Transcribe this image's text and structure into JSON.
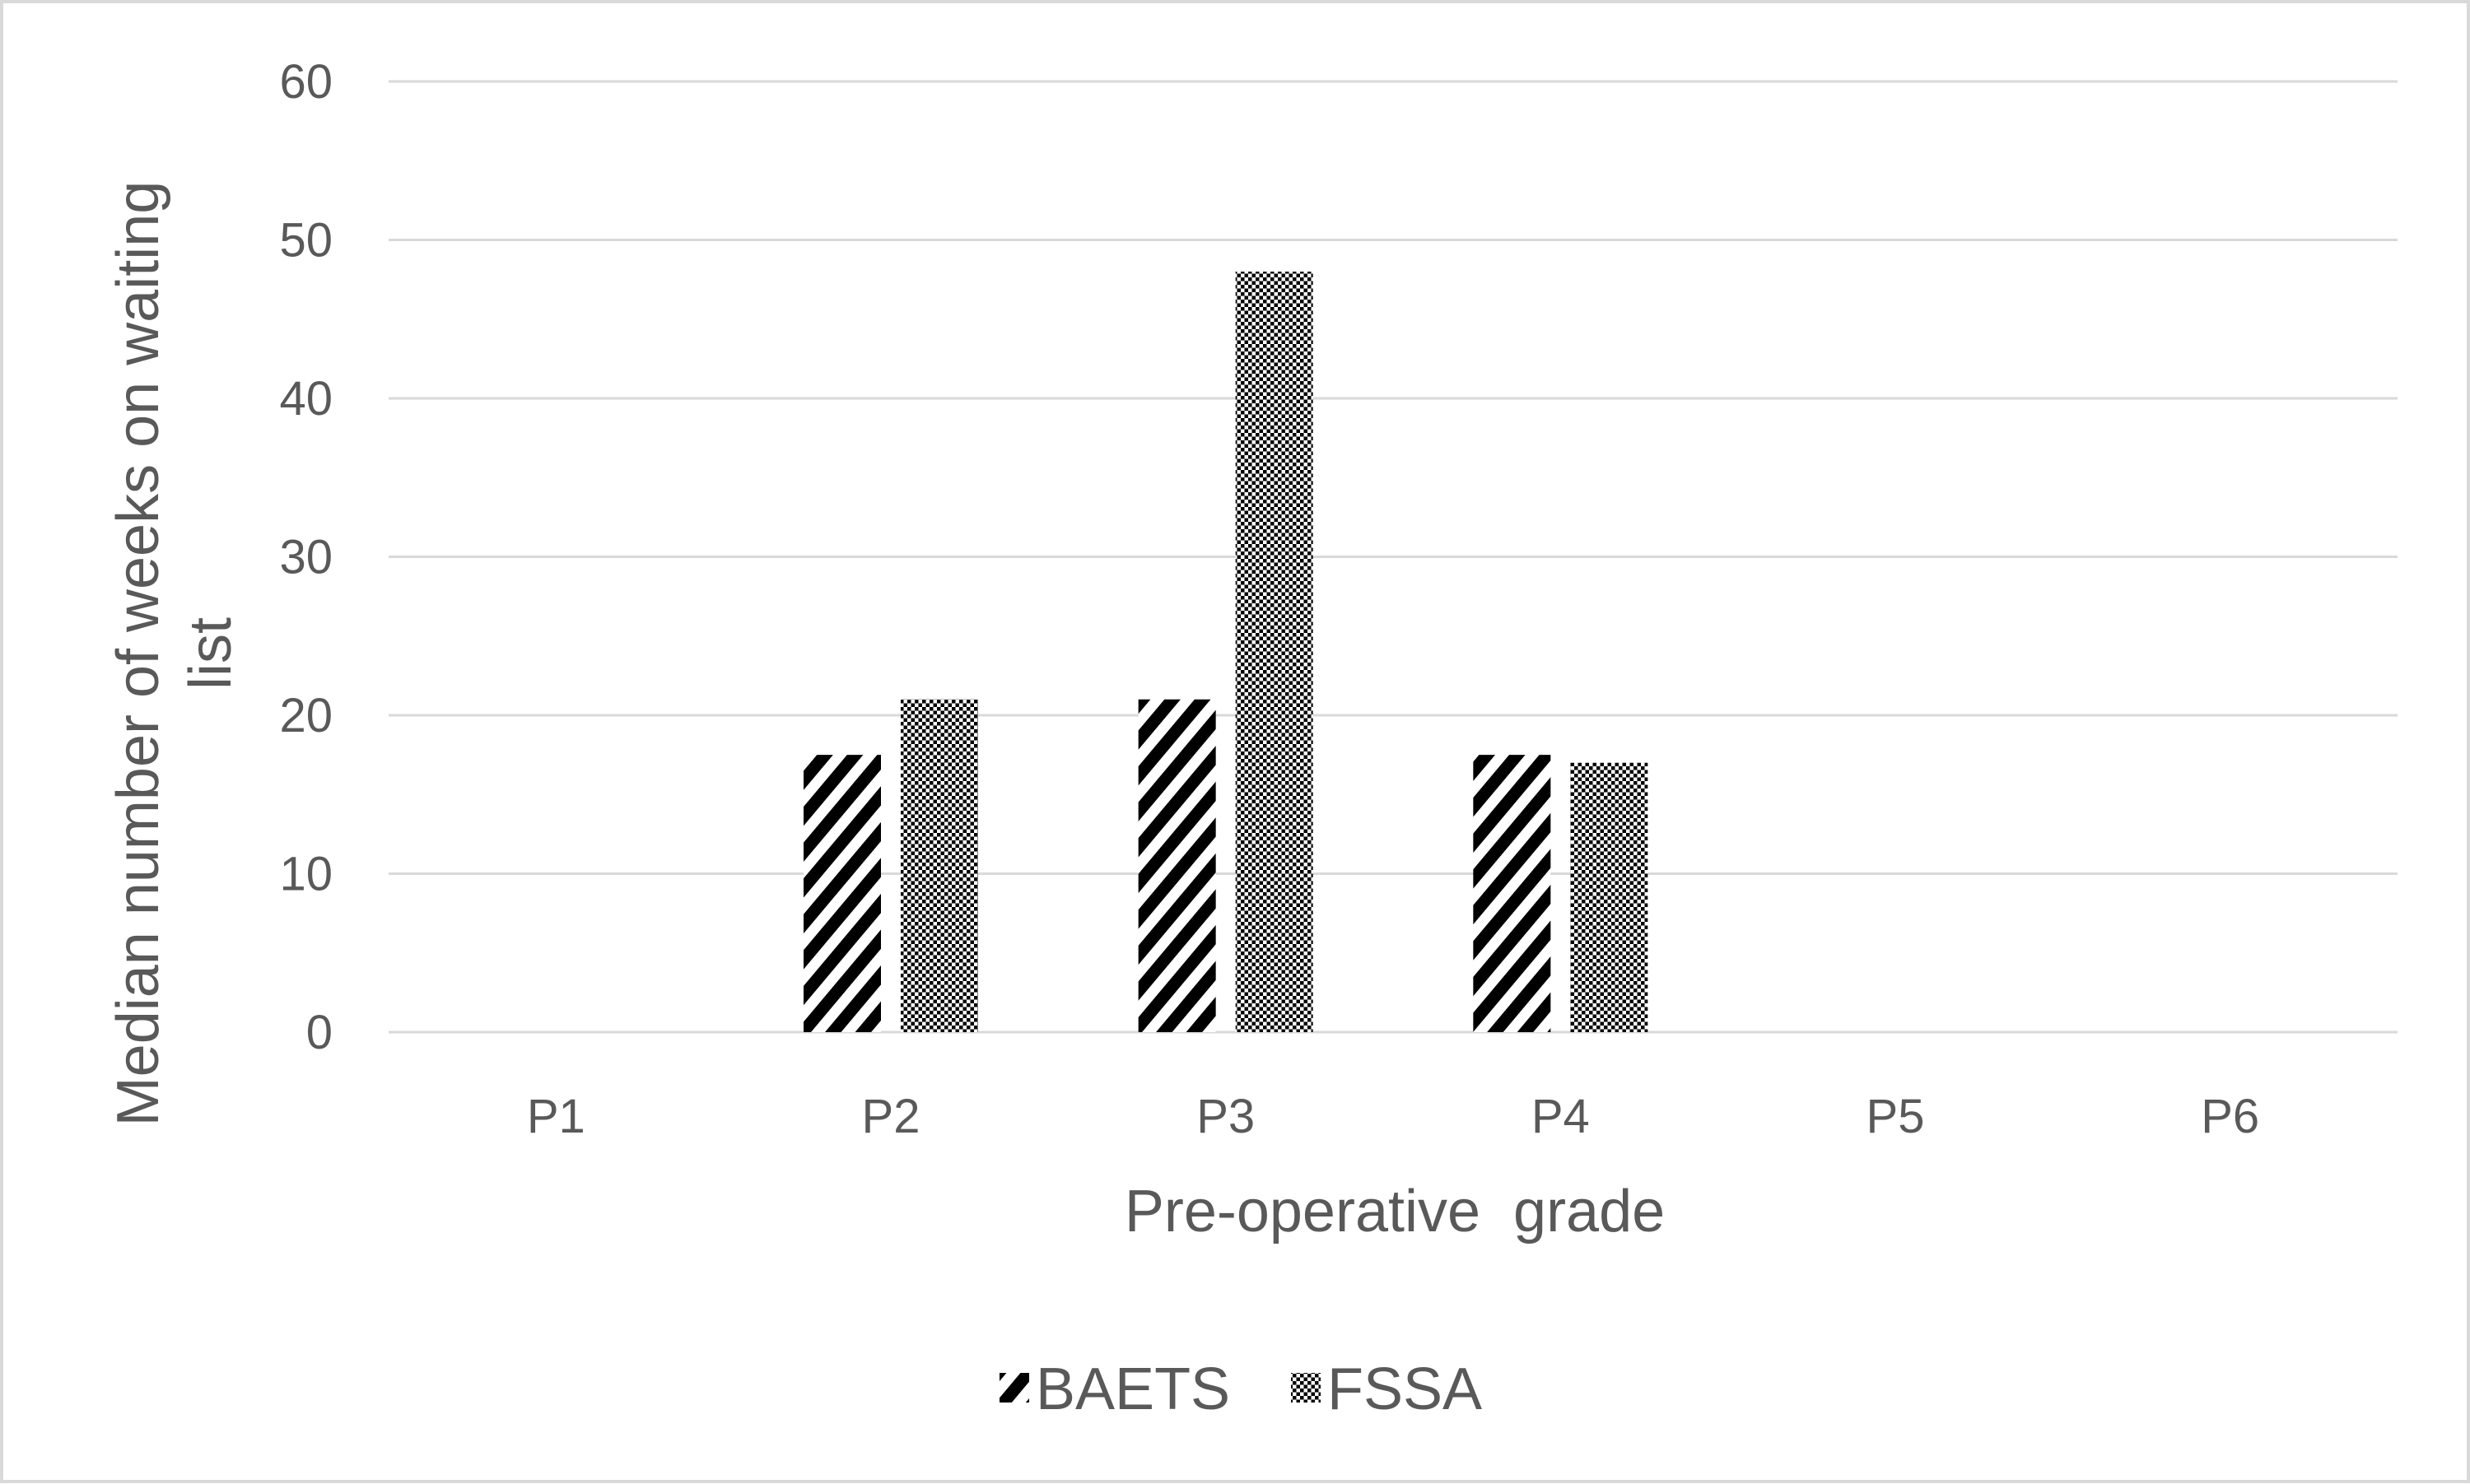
{
  "chart_data": {
    "type": "bar",
    "title": "",
    "xlabel": "Pre-operative  grade",
    "ylabel": "Median number of weeks on waiting list",
    "ylabel_lines": [
      "Median number of weeks on waiting",
      "list"
    ],
    "categories": [
      "P1",
      "P2",
      "P3",
      "P4",
      "P5",
      "P6"
    ],
    "series": [
      {
        "name": "BAETS",
        "values": [
          0,
          17.5,
          21,
          17.5,
          0,
          0
        ],
        "pattern": "diagonal-stripes",
        "color": "#000000"
      },
      {
        "name": "FSSA",
        "values": [
          0,
          21,
          48,
          17,
          0,
          0
        ],
        "pattern": "dotted",
        "color": "#000000"
      }
    ],
    "yticks": [
      "0",
      "10",
      "20",
      "30",
      "40",
      "50",
      "60"
    ],
    "ylim": [
      0,
      60
    ],
    "grid": true,
    "legend_position": "bottom"
  }
}
